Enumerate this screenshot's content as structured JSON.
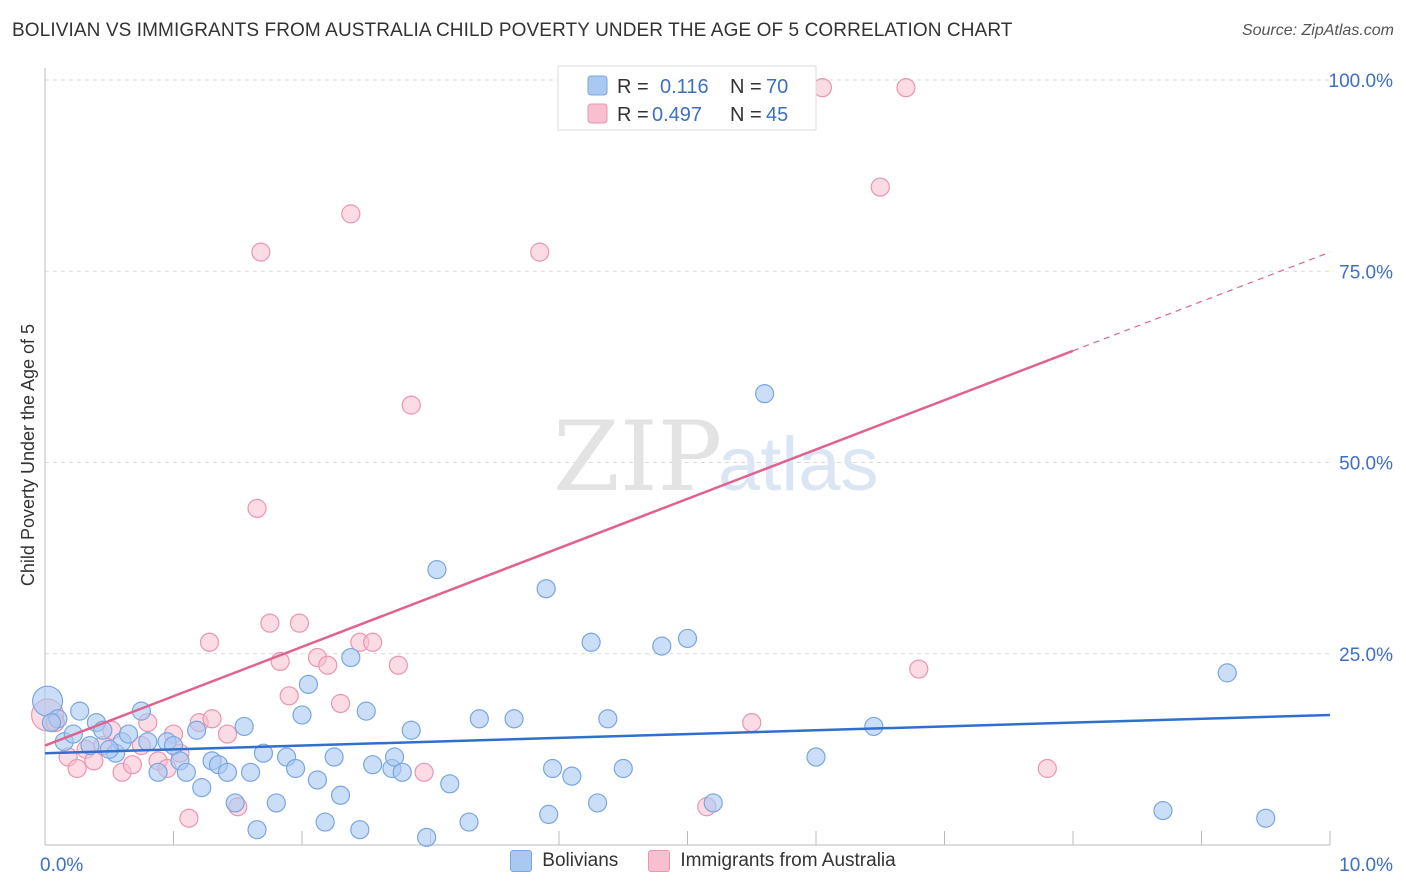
{
  "title": "BOLIVIAN VS IMMIGRANTS FROM AUSTRALIA CHILD POVERTY UNDER THE AGE OF 5 CORRELATION CHART",
  "source": "Source: ZipAtlas.com",
  "watermark": {
    "part1": "ZIP",
    "part2": "atlas"
  },
  "colors": {
    "blue_fill": "#a9c8f2",
    "blue_stroke": "#7aa6e0",
    "blue_line": "#2f6fce",
    "pink_fill": "#f7bfd0",
    "pink_stroke": "#ec94b0",
    "pink_line": "#e0638f",
    "grid": "#d9d9d9",
    "tick_text": "#3d6fc7"
  },
  "legend": {
    "blue": {
      "r_label": "R =",
      "r_value": "0.116",
      "n_label": "N =",
      "n_value": "70"
    },
    "pink": {
      "r_label": "R =",
      "r_value": "0.497",
      "n_label": "N =",
      "n_value": "45"
    }
  },
  "chart_data": {
    "type": "scatter",
    "title": "BOLIVIAN VS IMMIGRANTS FROM AUSTRALIA CHILD POVERTY UNDER THE AGE OF 5 CORRELATION CHART",
    "xlabel": "",
    "ylabel": "Child Poverty Under the Age of 5",
    "xlim": [
      0,
      10
    ],
    "ylim": [
      0,
      105
    ],
    "x_ticks": [
      {
        "value": 0,
        "label": "0.0%"
      },
      {
        "value": 10,
        "label": "10.0%"
      }
    ],
    "y_ticks": [
      {
        "value": 25,
        "label": "25.0%"
      },
      {
        "value": 50,
        "label": "50.0%"
      },
      {
        "value": 75,
        "label": "75.0%"
      },
      {
        "value": 100,
        "label": "100.0%"
      }
    ],
    "grid": true,
    "legend_position": "top-center",
    "series": [
      {
        "name": "Bolivians",
        "color": "#a9c8f2",
        "trend": {
          "x": [
            0,
            10
          ],
          "y": [
            12.0,
            17.0
          ]
        },
        "points": [
          [
            0.02,
            18.8
          ],
          [
            0.1,
            16.5
          ],
          [
            0.15,
            13.5
          ],
          [
            0.22,
            14.5
          ],
          [
            0.27,
            17.5
          ],
          [
            0.35,
            13.0
          ],
          [
            0.4,
            16.0
          ],
          [
            0.45,
            15.0
          ],
          [
            0.55,
            12.0
          ],
          [
            0.6,
            13.5
          ],
          [
            0.65,
            14.5
          ],
          [
            0.75,
            17.5
          ],
          [
            0.8,
            13.5
          ],
          [
            0.88,
            9.5
          ],
          [
            0.95,
            13.5
          ],
          [
            1.0,
            13.0
          ],
          [
            1.05,
            11.0
          ],
          [
            1.1,
            9.5
          ],
          [
            1.18,
            15.0
          ],
          [
            1.22,
            7.5
          ],
          [
            1.3,
            11.0
          ],
          [
            1.35,
            10.5
          ],
          [
            1.42,
            9.5
          ],
          [
            1.48,
            5.5
          ],
          [
            1.55,
            15.5
          ],
          [
            1.6,
            9.5
          ],
          [
            1.65,
            2.0
          ],
          [
            1.7,
            12.0
          ],
          [
            1.8,
            5.5
          ],
          [
            1.88,
            11.5
          ],
          [
            1.95,
            10.0
          ],
          [
            2.0,
            17.0
          ],
          [
            2.05,
            21.0
          ],
          [
            2.12,
            8.5
          ],
          [
            2.18,
            3.0
          ],
          [
            2.25,
            11.5
          ],
          [
            2.3,
            6.5
          ],
          [
            2.38,
            24.5
          ],
          [
            2.45,
            2.0
          ],
          [
            2.5,
            17.5
          ],
          [
            2.55,
            10.5
          ],
          [
            2.7,
            10.0
          ],
          [
            2.72,
            11.5
          ],
          [
            2.78,
            9.5
          ],
          [
            2.85,
            15.0
          ],
          [
            2.97,
            1.0
          ],
          [
            3.05,
            36.0
          ],
          [
            3.15,
            8.0
          ],
          [
            3.3,
            3.0
          ],
          [
            3.38,
            16.5
          ],
          [
            3.65,
            16.5
          ],
          [
            3.9,
            33.5
          ],
          [
            3.92,
            4.0
          ],
          [
            3.95,
            10.0
          ],
          [
            4.1,
            9.0
          ],
          [
            4.25,
            26.5
          ],
          [
            4.3,
            5.5
          ],
          [
            4.38,
            16.5
          ],
          [
            4.5,
            10.0
          ],
          [
            4.8,
            26.0
          ],
          [
            5.0,
            27.0
          ],
          [
            5.2,
            5.5
          ],
          [
            5.6,
            59.0
          ],
          [
            6.0,
            11.5
          ],
          [
            6.45,
            15.5
          ],
          [
            8.7,
            4.5
          ],
          [
            9.2,
            22.5
          ],
          [
            9.5,
            3.5
          ],
          [
            0.05,
            16.0
          ],
          [
            0.5,
            12.5
          ]
        ]
      },
      {
        "name": "Immigrants from Australia",
        "color": "#f7bfd0",
        "trend": {
          "x": [
            0,
            10
          ],
          "y": [
            13.0,
            77.5
          ]
        },
        "points": [
          [
            0.02,
            17.0
          ],
          [
            0.08,
            16.0
          ],
          [
            0.18,
            11.5
          ],
          [
            0.25,
            10.0
          ],
          [
            0.32,
            12.5
          ],
          [
            0.38,
            11.0
          ],
          [
            0.45,
            13.0
          ],
          [
            0.52,
            15.0
          ],
          [
            0.6,
            9.5
          ],
          [
            0.68,
            10.5
          ],
          [
            0.75,
            13.0
          ],
          [
            0.8,
            16.0
          ],
          [
            0.88,
            11.0
          ],
          [
            0.95,
            10.0
          ],
          [
            1.0,
            14.5
          ],
          [
            1.05,
            12.0
          ],
          [
            1.12,
            3.5
          ],
          [
            1.2,
            16.0
          ],
          [
            1.28,
            26.5
          ],
          [
            1.3,
            16.5
          ],
          [
            1.42,
            14.5
          ],
          [
            1.5,
            5.0
          ],
          [
            1.65,
            44.0
          ],
          [
            1.68,
            77.5
          ],
          [
            1.75,
            29.0
          ],
          [
            1.83,
            24.0
          ],
          [
            1.9,
            19.5
          ],
          [
            1.98,
            29.0
          ],
          [
            2.12,
            24.5
          ],
          [
            2.2,
            23.5
          ],
          [
            2.3,
            18.5
          ],
          [
            2.38,
            82.5
          ],
          [
            2.45,
            26.5
          ],
          [
            2.55,
            26.5
          ],
          [
            2.75,
            23.5
          ],
          [
            2.85,
            57.5
          ],
          [
            2.95,
            9.5
          ],
          [
            3.85,
            77.5
          ],
          [
            5.15,
            5.0
          ],
          [
            5.5,
            16.0
          ],
          [
            6.05,
            99.0
          ],
          [
            6.5,
            86.0
          ],
          [
            6.7,
            99.0
          ],
          [
            6.8,
            23.0
          ],
          [
            7.8,
            10.0
          ]
        ]
      }
    ]
  },
  "bottom_legend": {
    "blue_label": "Bolivians",
    "pink_label": "Immigrants from Australia"
  }
}
